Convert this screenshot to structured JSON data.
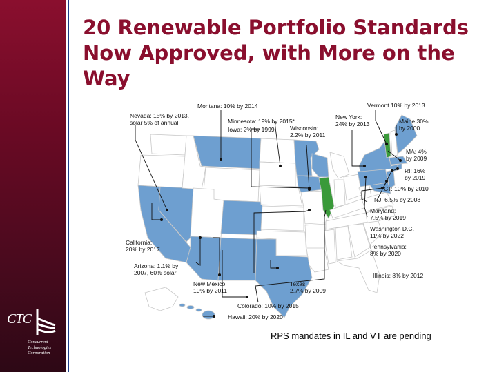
{
  "title": "20 Renewable Portfolio Standards Now Approved, with More on the Way",
  "colors": {
    "brand_maroon": "#8a0f2e",
    "rps_state": "#6e9fd0",
    "pending_state": "#3a9a3a",
    "no_rps_state": "#ffffff",
    "outline": "#c8c8c8"
  },
  "map": {
    "labels": {
      "montana": "Montana: 10% by 2014",
      "nevada": "Nevada: 15% by 2013,\nsolar 5% of annual",
      "minnesota": "Minnesota: 19% by 2015*",
      "iowa": "Iowa: 2% by 1999",
      "wisconsin": "Wisconsin:\n2.2% by 2011",
      "new_york": "New York:\n24% by 2013",
      "vermont": "Vermont 10% by 2013",
      "maine": "Maine 30%\nby 2000",
      "ma": "MA: 4%\nby 2009",
      "ri": "RI: 16%\nby 2019",
      "ct": "CT: 10% by 2010",
      "nj": "NJ: 6.5% by 2008",
      "maryland": "Maryland:\n7.5% by 2019",
      "dc": "Washington D.C.\n11% by 2022",
      "pennsylvania": "Pennsylvania:\n8% by 2020",
      "illinois": "Illinois: 8% by 2012",
      "california": "California:\n20% by 2017",
      "arizona": "Arizona: 1.1% by\n2007, 60% solar",
      "new_mexico": "New Mexico:\n10% by 2011",
      "texas": "Texas:\n2.7% by 2009",
      "colorado": "Colorado: 10% by 2015",
      "hawaii": "Hawaii: 20% by 2020"
    }
  },
  "caption": "RPS mandates in IL and VT are pending",
  "logo": {
    "abbr": "CTC",
    "full_name": "Concurrent\nTechnologies\nCorporation"
  }
}
